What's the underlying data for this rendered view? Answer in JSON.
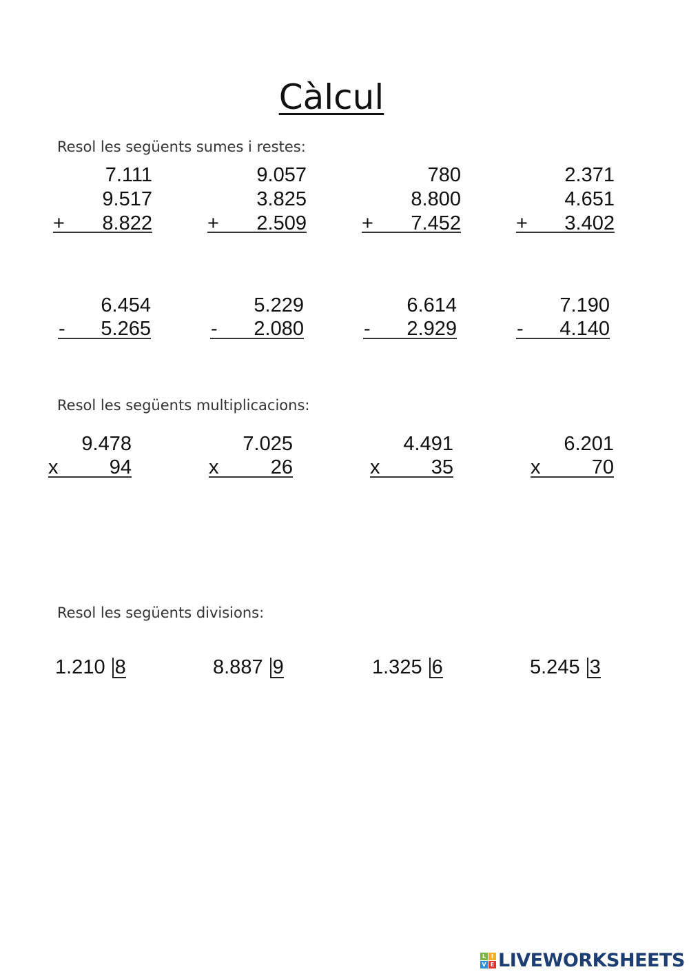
{
  "title": "Càlcul",
  "sections": {
    "additions": {
      "instruction": "Resol les següents sumes i restes:",
      "operator": "+",
      "problems": [
        [
          "7.111",
          "9.517",
          "8.822"
        ],
        [
          "9.057",
          "3.825",
          "2.509"
        ],
        [
          "780",
          "8.800",
          "7.452"
        ],
        [
          "2.371",
          "4.651",
          "3.402"
        ]
      ]
    },
    "subtractions": {
      "operator": "-",
      "problems": [
        [
          "6.454",
          "5.265"
        ],
        [
          "5.229",
          "2.080"
        ],
        [
          "6.614",
          "2.929"
        ],
        [
          "7.190",
          "4.140"
        ]
      ]
    },
    "multiplications": {
      "instruction": "Resol les següents multiplicacions:",
      "operator": "x",
      "problems": [
        [
          "9.478",
          "94"
        ],
        [
          "7.025",
          "26"
        ],
        [
          "4.491",
          "35"
        ],
        [
          "6.201",
          "70"
        ]
      ]
    },
    "divisions": {
      "instruction": "Resol les següents divisions:",
      "problems": [
        {
          "dividend": "1.210",
          "divisor": "8"
        },
        {
          "dividend": "8.887",
          "divisor": "9"
        },
        {
          "dividend": "1.325",
          "divisor": "6"
        },
        {
          "dividend": "5.245",
          "divisor": "3"
        }
      ]
    }
  },
  "watermark": {
    "text": "LIVEWORKSHEETS",
    "icon_letters": [
      "L",
      "I",
      "V",
      "E"
    ],
    "icon_colors": [
      "#7bb642",
      "#f3b21b",
      "#2e8fd6",
      "#e2322f"
    ],
    "text_color": "#1d3e72"
  }
}
